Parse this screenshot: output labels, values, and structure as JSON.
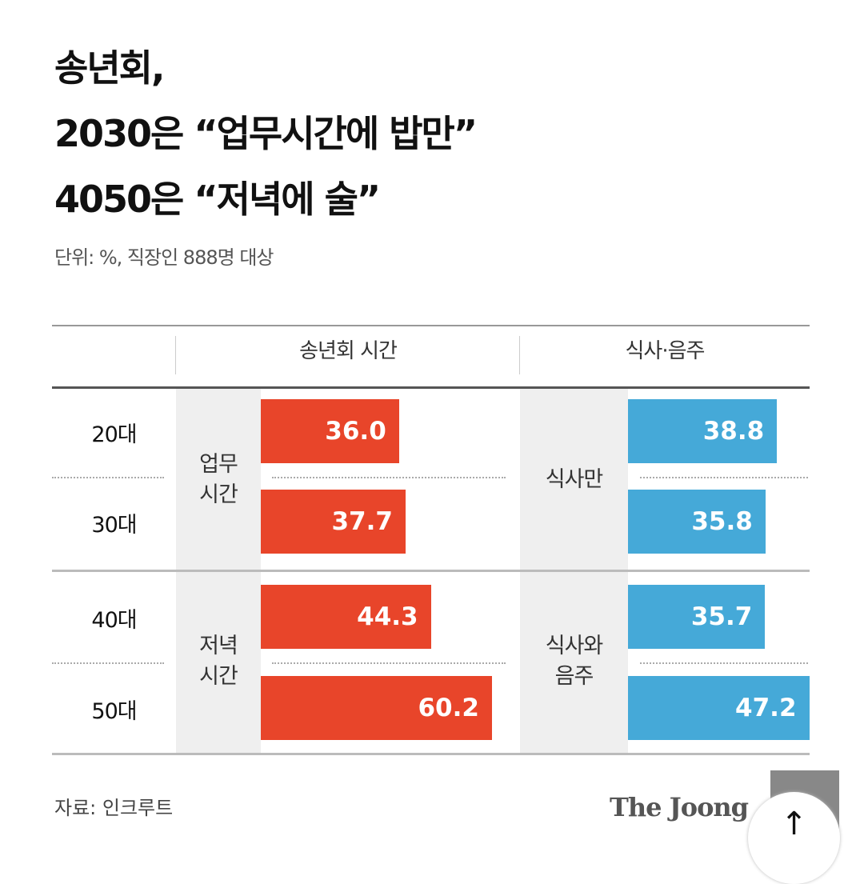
{
  "title_lines": [
    "송년회,",
    "2030은 “업무시간에 밥만”",
    "4050은 “저녁에 술”"
  ],
  "subtitle": "단위: %, 직장인 888명 대상",
  "source": "자료: 인크루트",
  "logo": "The JoongAng",
  "colors": {
    "time": "#e8452a",
    "meal": "#45a9d8"
  },
  "chart_data": {
    "type": "bar",
    "orientation": "horizontal",
    "categories": [
      "20대",
      "30대",
      "40대",
      "50대"
    ],
    "panels": [
      {
        "header": "송년회 시간",
        "groups": [
          {
            "label_lines": [
              "업무",
              "시간"
            ],
            "rows": [
              0,
              1
            ]
          },
          {
            "label_lines": [
              "저녁",
              "시간"
            ],
            "rows": [
              2,
              3
            ]
          }
        ],
        "values": [
          36.0,
          37.7,
          44.3,
          60.2
        ],
        "labels": [
          "36.0",
          "37.7",
          "44.3",
          "60.2"
        ]
      },
      {
        "header": "식사·음주",
        "groups": [
          {
            "label_lines": [
              "식사만"
            ],
            "rows": [
              0,
              1
            ]
          },
          {
            "label_lines": [
              "식사와",
              "음주"
            ],
            "rows": [
              2,
              3
            ]
          }
        ],
        "values": [
          38.8,
          35.8,
          35.7,
          47.2
        ],
        "labels": [
          "38.8",
          "35.8",
          "35.7",
          "47.2"
        ]
      }
    ]
  }
}
